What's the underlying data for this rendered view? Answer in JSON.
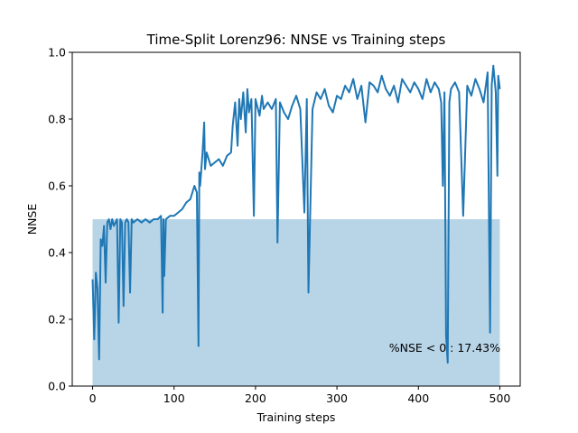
{
  "chart_data": {
    "type": "line",
    "title": "Time-Split Lorenz96: NNSE vs Training steps",
    "xlabel": "Training steps",
    "ylabel": "NNSE",
    "xlim": [
      -25,
      525
    ],
    "ylim": [
      0.0,
      1.0
    ],
    "xticks": [
      0,
      100,
      200,
      300,
      400,
      500
    ],
    "yticks": [
      0.0,
      0.2,
      0.4,
      0.6,
      0.8,
      1.0
    ],
    "xtick_labels": [
      "0",
      "100",
      "200",
      "300",
      "400",
      "500"
    ],
    "ytick_labels": [
      "0.0",
      "0.2",
      "0.4",
      "0.6",
      "0.8",
      "1.0"
    ],
    "grid": false,
    "series": [
      {
        "color": "#1f77b4",
        "x": [
          0,
          2,
          4,
          6,
          8,
          10,
          12,
          14,
          16,
          18,
          20,
          22,
          24,
          26,
          28,
          30,
          32,
          34,
          36,
          38,
          40,
          42,
          44,
          46,
          48,
          50,
          55,
          60,
          65,
          70,
          75,
          80,
          84,
          86,
          87,
          88,
          90,
          95,
          100,
          105,
          110,
          115,
          120,
          125,
          128,
          130,
          131,
          132,
          135,
          137,
          138,
          140,
          145,
          150,
          155,
          160,
          165,
          170,
          172,
          175,
          178,
          180,
          182,
          185,
          188,
          190,
          192,
          195,
          198,
          200,
          202,
          205,
          208,
          210,
          215,
          220,
          225,
          227,
          230,
          235,
          240,
          245,
          250,
          255,
          260,
          263,
          265,
          270,
          275,
          280,
          285,
          290,
          295,
          300,
          305,
          310,
          315,
          320,
          325,
          330,
          335,
          340,
          345,
          350,
          355,
          360,
          365,
          370,
          375,
          380,
          385,
          390,
          395,
          400,
          405,
          410,
          415,
          420,
          425,
          428,
          430,
          432,
          434,
          436,
          438,
          440,
          445,
          450,
          455,
          460,
          465,
          470,
          475,
          480,
          485,
          488,
          490,
          492,
          495,
          497,
          498,
          500
        ],
        "y": [
          0.32,
          0.14,
          0.34,
          0.29,
          0.08,
          0.44,
          0.42,
          0.48,
          0.31,
          0.49,
          0.5,
          0.47,
          0.5,
          0.48,
          0.49,
          0.5,
          0.19,
          0.5,
          0.49,
          0.24,
          0.49,
          0.5,
          0.49,
          0.28,
          0.5,
          0.49,
          0.5,
          0.49,
          0.5,
          0.49,
          0.5,
          0.5,
          0.51,
          0.22,
          0.5,
          0.33,
          0.5,
          0.51,
          0.51,
          0.52,
          0.53,
          0.55,
          0.56,
          0.6,
          0.58,
          0.12,
          0.64,
          0.6,
          0.7,
          0.79,
          0.65,
          0.7,
          0.66,
          0.67,
          0.68,
          0.66,
          0.69,
          0.7,
          0.78,
          0.85,
          0.72,
          0.86,
          0.8,
          0.88,
          0.76,
          0.89,
          0.82,
          0.86,
          0.51,
          0.86,
          0.84,
          0.81,
          0.87,
          0.83,
          0.85,
          0.83,
          0.86,
          0.43,
          0.85,
          0.82,
          0.8,
          0.84,
          0.87,
          0.83,
          0.52,
          0.86,
          0.28,
          0.83,
          0.88,
          0.86,
          0.89,
          0.84,
          0.82,
          0.87,
          0.86,
          0.9,
          0.88,
          0.92,
          0.86,
          0.9,
          0.79,
          0.91,
          0.9,
          0.88,
          0.93,
          0.89,
          0.87,
          0.9,
          0.85,
          0.92,
          0.9,
          0.88,
          0.91,
          0.89,
          0.86,
          0.92,
          0.88,
          0.91,
          0.89,
          0.85,
          0.6,
          0.88,
          0.15,
          0.07,
          0.85,
          0.89,
          0.91,
          0.88,
          0.51,
          0.9,
          0.87,
          0.92,
          0.89,
          0.85,
          0.94,
          0.16,
          0.9,
          0.96,
          0.88,
          0.63,
          0.93,
          0.89
        ]
      }
    ],
    "shaded_region": {
      "x": [
        0,
        500
      ],
      "y": [
        0.0,
        0.5
      ],
      "color": "#b8d5e8"
    },
    "annotation": "%NSE < 0 : 17.43%"
  }
}
